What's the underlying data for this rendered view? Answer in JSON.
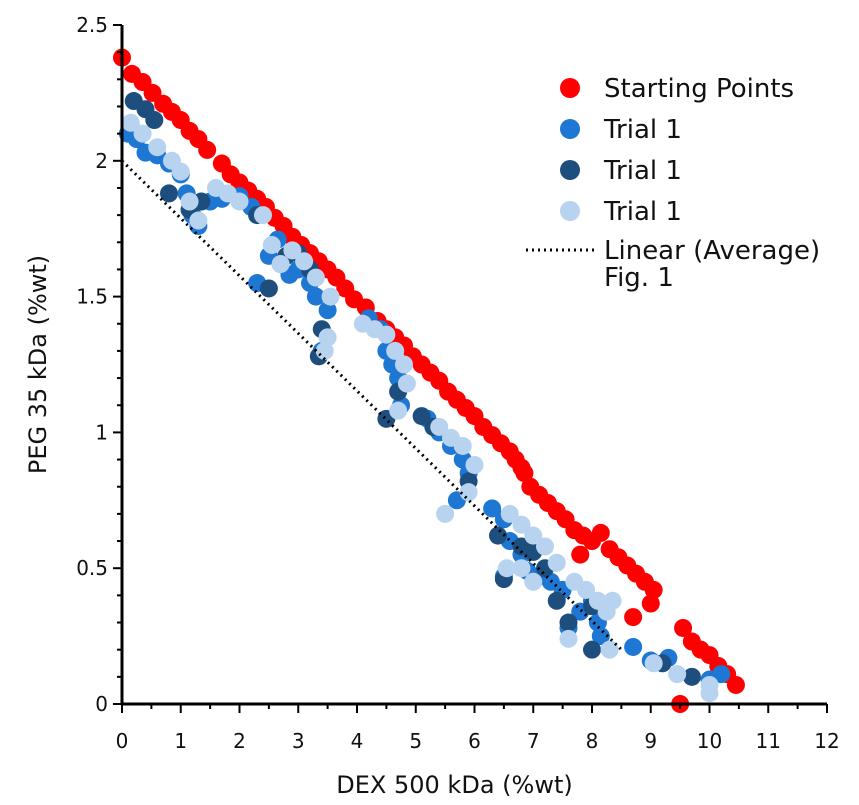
{
  "chart_data": {
    "type": "scatter",
    "title": "",
    "xlabel": "DEX 500 kDa (%wt)",
    "ylabel": "PEG 35 kDa (%wt)",
    "xlim": [
      0,
      12
    ],
    "ylim": [
      0,
      2.5
    ],
    "xticks": [
      "0",
      "1",
      "2",
      "3",
      "4",
      "5",
      "6",
      "7",
      "8",
      "9",
      "10",
      "11",
      "12"
    ],
    "yticks": [
      "0",
      "0.5",
      "1",
      "1.5",
      "2",
      "2.5"
    ],
    "grid": false,
    "legend_position": "top-right",
    "legend_extra_text": "Fig. 1",
    "series": [
      {
        "name": "Starting Points",
        "color": "#ff0000",
        "points": [
          [
            0,
            2.38
          ],
          [
            0.17,
            2.32
          ],
          [
            0.35,
            2.29
          ],
          [
            0.52,
            2.25
          ],
          [
            0.7,
            2.21
          ],
          [
            0.85,
            2.18
          ],
          [
            1.0,
            2.15
          ],
          [
            1.15,
            2.11
          ],
          [
            1.3,
            2.08
          ],
          [
            1.45,
            2.04
          ],
          [
            1.7,
            1.99
          ],
          [
            1.85,
            1.95
          ],
          [
            2.0,
            1.92
          ],
          [
            2.15,
            1.89
          ],
          [
            2.3,
            1.86
          ],
          [
            2.45,
            1.83
          ],
          [
            2.6,
            1.79
          ],
          [
            2.75,
            1.76
          ],
          [
            2.9,
            1.72
          ],
          [
            3.05,
            1.69
          ],
          [
            3.2,
            1.66
          ],
          [
            3.35,
            1.63
          ],
          [
            3.5,
            1.6
          ],
          [
            3.65,
            1.57
          ],
          [
            3.8,
            1.53
          ],
          [
            3.95,
            1.49
          ],
          [
            4.15,
            1.46
          ],
          [
            4.35,
            1.41
          ],
          [
            4.5,
            1.38
          ],
          [
            4.65,
            1.35
          ],
          [
            4.8,
            1.32
          ],
          [
            4.95,
            1.28
          ],
          [
            5.1,
            1.25
          ],
          [
            5.25,
            1.22
          ],
          [
            5.4,
            1.19
          ],
          [
            5.55,
            1.15
          ],
          [
            5.7,
            1.12
          ],
          [
            5.85,
            1.09
          ],
          [
            6.0,
            1.06
          ],
          [
            6.15,
            1.02
          ],
          [
            6.3,
            0.99
          ],
          [
            6.45,
            0.96
          ],
          [
            6.6,
            0.93
          ],
          [
            6.7,
            0.9
          ],
          [
            6.8,
            0.87
          ],
          [
            6.85,
            0.85
          ],
          [
            6.95,
            0.8
          ],
          [
            7.1,
            0.77
          ],
          [
            7.25,
            0.74
          ],
          [
            7.4,
            0.71
          ],
          [
            7.55,
            0.68
          ],
          [
            7.7,
            0.64
          ],
          [
            7.85,
            0.62
          ],
          [
            8.0,
            0.6
          ],
          [
            8.15,
            0.63
          ],
          [
            7.8,
            0.55
          ],
          [
            8.3,
            0.57
          ],
          [
            8.45,
            0.54
          ],
          [
            8.6,
            0.51
          ],
          [
            8.75,
            0.48
          ],
          [
            8.9,
            0.45
          ],
          [
            9.05,
            0.42
          ],
          [
            9.0,
            0.37
          ],
          [
            8.7,
            0.32
          ],
          [
            9.55,
            0.28
          ],
          [
            9.7,
            0.23
          ],
          [
            9.85,
            0.2
          ],
          [
            10.0,
            0.18
          ],
          [
            10.15,
            0.14
          ],
          [
            10.3,
            0.11
          ],
          [
            10.45,
            0.07
          ],
          [
            9.5,
            0.0
          ]
        ]
      },
      {
        "name": "Trial 1",
        "color": "#1f77d4",
        "points": [
          [
            0.1,
            2.1
          ],
          [
            0.25,
            2.08
          ],
          [
            0.4,
            2.03
          ],
          [
            0.6,
            2.02
          ],
          [
            0.8,
            1.99
          ],
          [
            1.0,
            1.95
          ],
          [
            1.1,
            1.88
          ],
          [
            1.2,
            1.8
          ],
          [
            1.3,
            1.76
          ],
          [
            1.5,
            1.85
          ],
          [
            1.7,
            1.86
          ],
          [
            2.0,
            1.87
          ],
          [
            2.2,
            1.83
          ],
          [
            2.5,
            1.65
          ],
          [
            2.65,
            1.71
          ],
          [
            2.85,
            1.58
          ],
          [
            3.0,
            1.6
          ],
          [
            3.2,
            1.55
          ],
          [
            3.3,
            1.5
          ],
          [
            3.5,
            1.45
          ],
          [
            3.4,
            1.3
          ],
          [
            4.2,
            1.42
          ],
          [
            4.4,
            1.38
          ],
          [
            4.5,
            1.3
          ],
          [
            4.6,
            1.25
          ],
          [
            4.7,
            1.2
          ],
          [
            4.75,
            1.1
          ],
          [
            5.2,
            1.05
          ],
          [
            5.4,
            1.0
          ],
          [
            5.6,
            0.95
          ],
          [
            5.8,
            0.9
          ],
          [
            5.9,
            0.85
          ],
          [
            5.7,
            0.75
          ],
          [
            6.3,
            0.72
          ],
          [
            6.5,
            0.68
          ],
          [
            6.6,
            0.6
          ],
          [
            6.8,
            0.55
          ],
          [
            6.9,
            0.49
          ],
          [
            7.1,
            0.47
          ],
          [
            7.3,
            0.45
          ],
          [
            7.5,
            0.42
          ],
          [
            7.6,
            0.28
          ],
          [
            7.8,
            0.34
          ],
          [
            8.0,
            0.38
          ],
          [
            8.1,
            0.3
          ],
          [
            8.15,
            0.25
          ],
          [
            8.7,
            0.21
          ],
          [
            9.0,
            0.16
          ],
          [
            9.3,
            0.17
          ],
          [
            10.0,
            0.09
          ],
          [
            10.2,
            0.11
          ],
          [
            6.5,
            0.47
          ],
          [
            2.3,
            1.55
          ],
          [
            2.7,
            1.62
          ]
        ]
      },
      {
        "name": "Trial 1",
        "color": "#1d4e7e",
        "points": [
          [
            0.2,
            2.22
          ],
          [
            0.4,
            2.19
          ],
          [
            0.55,
            2.15
          ],
          [
            0.8,
            1.88
          ],
          [
            1.15,
            1.82
          ],
          [
            1.35,
            1.85
          ],
          [
            2.3,
            1.8
          ],
          [
            2.5,
            1.53
          ],
          [
            2.8,
            1.65
          ],
          [
            3.0,
            1.66
          ],
          [
            3.2,
            1.6
          ],
          [
            3.4,
            1.38
          ],
          [
            3.35,
            1.28
          ],
          [
            4.5,
            1.05
          ],
          [
            4.7,
            1.15
          ],
          [
            5.1,
            1.06
          ],
          [
            5.3,
            1.02
          ],
          [
            5.9,
            0.82
          ],
          [
            6.4,
            0.62
          ],
          [
            6.5,
            0.46
          ],
          [
            6.8,
            0.58
          ],
          [
            7.0,
            0.56
          ],
          [
            7.2,
            0.5
          ],
          [
            7.4,
            0.38
          ],
          [
            7.6,
            0.3
          ],
          [
            8.0,
            0.2
          ],
          [
            8.0,
            0.36
          ],
          [
            9.2,
            0.15
          ],
          [
            9.7,
            0.1
          ]
        ]
      },
      {
        "name": "Trial 1",
        "color": "#b8d3ef",
        "points": [
          [
            0.15,
            2.14
          ],
          [
            0.35,
            2.1
          ],
          [
            0.6,
            2.05
          ],
          [
            0.85,
            2.0
          ],
          [
            1.0,
            1.96
          ],
          [
            1.15,
            1.85
          ],
          [
            1.3,
            1.78
          ],
          [
            1.6,
            1.9
          ],
          [
            1.8,
            1.88
          ],
          [
            2.0,
            1.85
          ],
          [
            2.4,
            1.8
          ],
          [
            2.55,
            1.69
          ],
          [
            2.7,
            1.62
          ],
          [
            2.9,
            1.67
          ],
          [
            3.1,
            1.63
          ],
          [
            3.3,
            1.57
          ],
          [
            3.55,
            1.5
          ],
          [
            3.5,
            1.35
          ],
          [
            3.45,
            1.3
          ],
          [
            4.1,
            1.4
          ],
          [
            4.3,
            1.38
          ],
          [
            4.5,
            1.36
          ],
          [
            4.65,
            1.3
          ],
          [
            4.8,
            1.25
          ],
          [
            4.85,
            1.18
          ],
          [
            4.7,
            1.08
          ],
          [
            5.4,
            1.02
          ],
          [
            5.6,
            0.98
          ],
          [
            5.8,
            0.95
          ],
          [
            6.0,
            0.88
          ],
          [
            5.9,
            0.78
          ],
          [
            5.5,
            0.7
          ],
          [
            6.6,
            0.7
          ],
          [
            6.8,
            0.66
          ],
          [
            7.0,
            0.62
          ],
          [
            7.2,
            0.58
          ],
          [
            7.4,
            0.52
          ],
          [
            6.55,
            0.5
          ],
          [
            6.8,
            0.5
          ],
          [
            7.0,
            0.45
          ],
          [
            7.7,
            0.45
          ],
          [
            7.9,
            0.42
          ],
          [
            8.1,
            0.38
          ],
          [
            8.25,
            0.34
          ],
          [
            8.35,
            0.38
          ],
          [
            8.3,
            0.2
          ],
          [
            9.05,
            0.15
          ],
          [
            9.45,
            0.11
          ],
          [
            10.0,
            0.07
          ],
          [
            10.0,
            0.04
          ],
          [
            7.6,
            0.24
          ]
        ]
      }
    ],
    "trendline": {
      "name": "Linear (Average)",
      "color": "#000000",
      "style": "dotted",
      "points": [
        [
          0.0,
          2.0
        ],
        [
          8.5,
          0.2
        ]
      ]
    }
  }
}
